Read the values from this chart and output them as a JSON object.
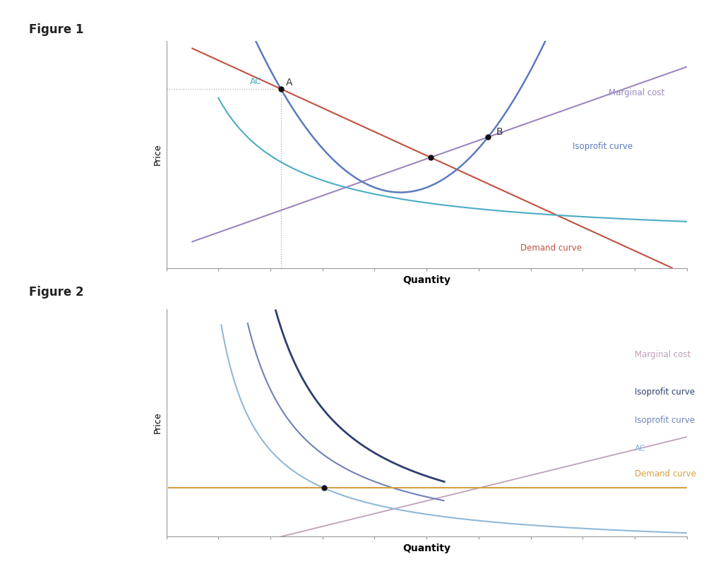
{
  "fig1": {
    "title": "Figure 1",
    "xlabel": "Quantity",
    "ylabel": "Price",
    "demand_color": "#c05040",
    "mc_color": "#9b86bd",
    "isoprofit_color": "#5b7abf",
    "ac_color": "#4bacc6",
    "dot_color": "#111111",
    "label_A": "A",
    "label_B": "B",
    "label_mc": "Marginal cost",
    "label_isoprofit": "Isoprofit curve",
    "label_demand": "Demand curve",
    "label_ac": "AC",
    "dotted_color": "#aaaaaa"
  },
  "fig2": {
    "title": "Figure 2",
    "xlabel": "Quantity",
    "ylabel": "Price",
    "demand_color": "#d4a040",
    "mc_color": "#c0a0b8",
    "isoprofit1_color": "#2e3f6e",
    "isoprofit2_color": "#7080b8",
    "ac_color": "#90b8d8",
    "dot_color": "#111111",
    "label_mc": "Marginal cost",
    "label_isoprofit1": "Isoprofit curve",
    "label_isoprofit2": "Isoprofit curve",
    "label_ac": "AC",
    "label_demand": "Demand curve"
  },
  "background_color": "#ffffff",
  "axis_color": "#999999"
}
